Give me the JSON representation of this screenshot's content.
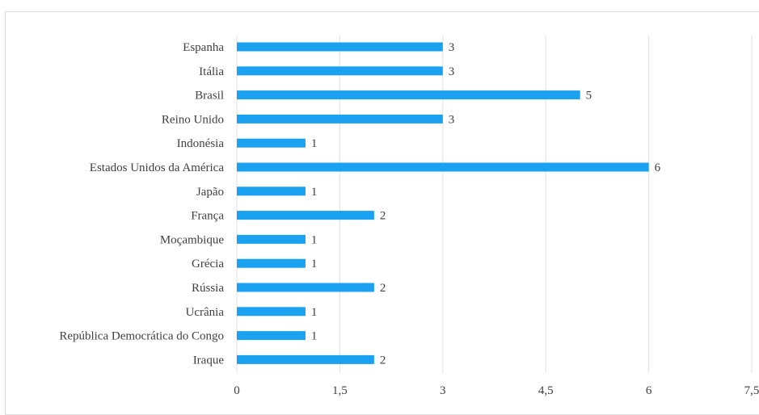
{
  "chart_data": {
    "type": "bar",
    "orientation": "horizontal",
    "title": "",
    "xlabel": "",
    "ylabel": "",
    "categories": [
      "Espanha",
      "Itália",
      "Brasil",
      "Reino Unido",
      "Indonésia",
      "Estados Unidos da América",
      "Japão",
      "França",
      "Moçambique",
      "Grécia",
      "Rússia",
      "Ucrânia",
      "República Democrática do Congo",
      "Iraque"
    ],
    "values": [
      3,
      3,
      5,
      3,
      1,
      6,
      1,
      2,
      1,
      1,
      2,
      1,
      1,
      2
    ],
    "data_labels": [
      "3",
      "3",
      "5",
      "3",
      "1",
      "6",
      "1",
      "2",
      "1",
      "1",
      "2",
      "1",
      "1",
      "2"
    ],
    "xlim": [
      0,
      7.5
    ],
    "xticks": [
      0,
      1.5,
      3,
      4.5,
      6,
      7.5
    ],
    "xtick_labels": [
      "0",
      "1,5",
      "3",
      "4,5",
      "6",
      "7,5"
    ],
    "grid": true,
    "legend": "none",
    "colors": {
      "bar": "#1aa1f0",
      "gridline": "#e0e0e0",
      "text": "#404040"
    }
  }
}
